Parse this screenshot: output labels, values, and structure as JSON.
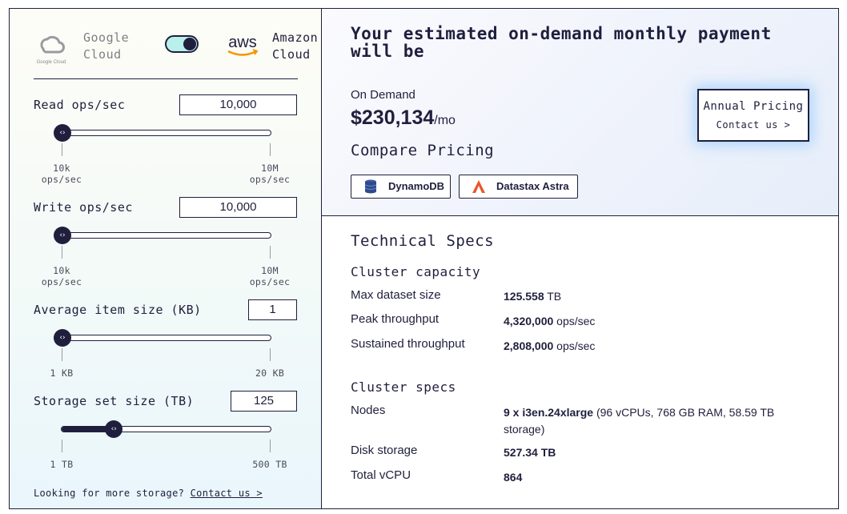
{
  "cloud_switch": {
    "google_label_1": "Google",
    "google_label_2": "Cloud",
    "google_logo_text": "Google Cloud",
    "aws_logo_text": "aws",
    "amazon_label_1": "Amazon",
    "amazon_label_2": "Cloud",
    "selected": "Amazon Cloud"
  },
  "sliders": [
    {
      "label": "Read ops/sec",
      "value": "10,000",
      "min_label_1": "10k",
      "min_label_2": "ops/sec",
      "max_label_1": "10M",
      "max_label_2": "ops/sec",
      "fraction": 0.0
    },
    {
      "label": "Write ops/sec",
      "value": "10,000",
      "min_label_1": "10k",
      "min_label_2": "ops/sec",
      "max_label_1": "10M",
      "max_label_2": "ops/sec",
      "fraction": 0.0
    },
    {
      "label": "Average item size (KB)",
      "value": "1",
      "min_label_1": "1 KB",
      "max_label_1": "20 KB",
      "fraction": 0.0
    },
    {
      "label": "Storage set size (TB)",
      "value": "125",
      "min_label_1": "1 TB",
      "max_label_1": "500 TB",
      "fraction": 0.248
    }
  ],
  "more_storage": {
    "text": "Looking for more storage?",
    "link": "Contact us >"
  },
  "estimate": {
    "title": "Your estimated on-demand monthly payment will be",
    "on_demand_label": "On Demand",
    "price": "$230,134",
    "per": "/mo",
    "compare_title": "Compare Pricing",
    "compare_buttons": [
      {
        "label": "DynamoDB",
        "icon": "dynamodb-icon",
        "color": "#2e4a8a"
      },
      {
        "label": "Datastax Astra",
        "icon": "astra-icon",
        "color": "#e8572b"
      }
    ],
    "annual_title": "Annual Pricing",
    "annual_link": "Contact us >"
  },
  "specs": {
    "title": "Technical Specs",
    "capacity_title": "Cluster capacity",
    "capacity": [
      {
        "key": "Max dataset size",
        "value": "125.558",
        "unit": " TB"
      },
      {
        "key": "Peak throughput",
        "value": "4,320,000",
        "unit": " ops/sec"
      },
      {
        "key": "Sustained throughput",
        "value": "2,808,000",
        "unit": " ops/sec"
      }
    ],
    "cluster_title": "Cluster specs",
    "cluster": [
      {
        "key": "Nodes",
        "value": "9 x i3en.24xlarge",
        "unit": " (96 vCPUs, 768 GB RAM, 58.59 TB storage)"
      },
      {
        "key": "Disk storage",
        "value": "527.34 TB",
        "unit": ""
      },
      {
        "key": "Total vCPU",
        "value": "864",
        "unit": ""
      }
    ]
  },
  "colors": {
    "dark": "#1f1f3d",
    "toggle_bg": "#b9f0ec",
    "aws_orange": "#f79400"
  }
}
